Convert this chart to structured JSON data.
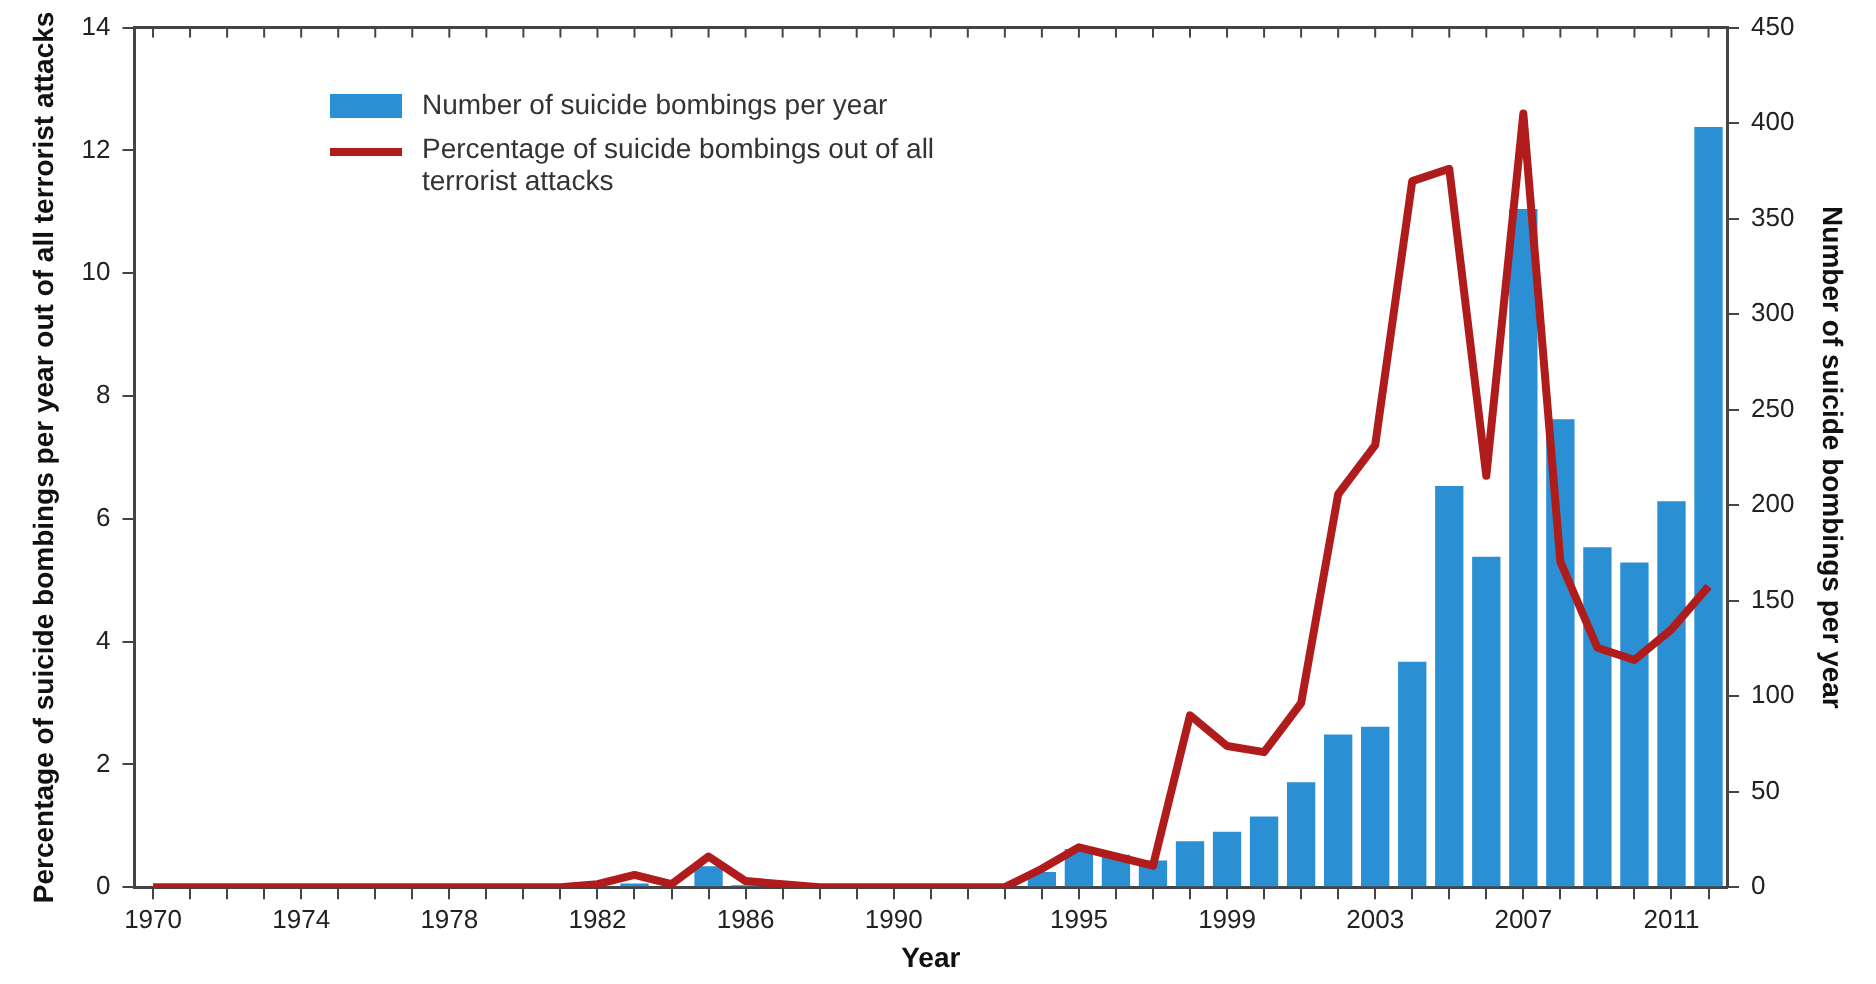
{
  "chart_data": {
    "type": "bar",
    "xlabel": "Year",
    "ylabel": "Percentage of suicide bombings per year out of all terrorist attacks",
    "y2label": "Number of suicide bombings per year",
    "categories": [
      "1970",
      null,
      null,
      null,
      "1974",
      null,
      null,
      null,
      "1978",
      null,
      null,
      null,
      "1982",
      null,
      null,
      null,
      "1986",
      null,
      null,
      null,
      "1990",
      null,
      null,
      null,
      null,
      "1995",
      null,
      null,
      null,
      "1999",
      null,
      null,
      null,
      "2003",
      null,
      null,
      null,
      "2007",
      null,
      null,
      null,
      "2011",
      null
    ],
    "series": [
      {
        "name": "Number of suicide bombings per year",
        "axis": "y2",
        "color": "#2b8fd3",
        "values": [
          0,
          0,
          0,
          0,
          0,
          0,
          0,
          0,
          0,
          0,
          0,
          0,
          null,
          2,
          null,
          11,
          1,
          null,
          0,
          0,
          0,
          0,
          0,
          0,
          8,
          20,
          17,
          14,
          24,
          29,
          37,
          55,
          80,
          84,
          118,
          210,
          173,
          355,
          245,
          178,
          170,
          202,
          398
        ]
      },
      {
        "name": "Percentage of suicide bombings out of all terrorist attacks",
        "type": "line",
        "axis": "y",
        "color": "#b01c1c",
        "values": [
          0,
          0,
          0,
          0,
          0,
          0,
          0,
          0,
          0,
          0,
          0,
          0,
          0.05,
          0.2,
          0.05,
          0.5,
          0.1,
          0.05,
          0,
          0,
          0,
          0,
          0,
          0,
          0.3,
          0.65,
          0.5,
          0.35,
          2.8,
          2.3,
          2.2,
          3.0,
          6.4,
          7.2,
          11.5,
          11.7,
          6.7,
          12.6,
          5.3,
          3.9,
          3.7,
          4.2,
          4.9
        ]
      }
    ],
    "ylim": [
      0,
      14
    ],
    "yticks": [
      0,
      2,
      4,
      6,
      8,
      10,
      12,
      14
    ],
    "y2lim": [
      0,
      450
    ],
    "y2ticks": [
      0,
      50,
      100,
      150,
      200,
      250,
      300,
      350,
      400,
      450
    ],
    "grid": false,
    "legend": "top left",
    "marker": "none",
    "line_style": "solid"
  }
}
